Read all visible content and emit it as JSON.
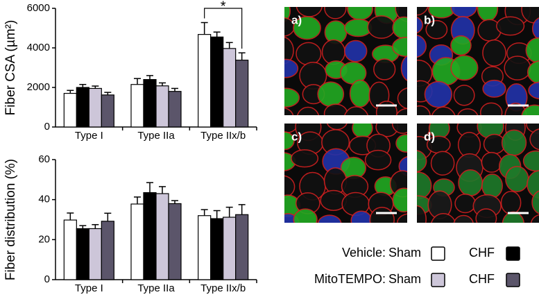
{
  "chart_data": [
    {
      "type": "bar",
      "ylabel": "Fiber CSA (µm²)",
      "categories": [
        "Type I",
        "Type IIa",
        "Type IIx/b"
      ],
      "series": [
        {
          "name": "Sham",
          "color": "#ffffff",
          "values": [
            1700,
            2150,
            4680
          ],
          "errors": [
            150,
            300,
            600
          ]
        },
        {
          "name": "CHF",
          "color": "#000000",
          "values": [
            2000,
            2400,
            4550
          ],
          "errors": [
            150,
            200,
            250
          ]
        },
        {
          "name": "Sham",
          "color": "#cdc6d9",
          "values": [
            1950,
            2080,
            3970
          ],
          "errors": [
            120,
            150,
            300
          ]
        },
        {
          "name": "CHF",
          "color": "#5b556a",
          "values": [
            1620,
            1800,
            3380
          ],
          "errors": [
            130,
            150,
            370
          ]
        }
      ],
      "ylim": [
        0,
        6000
      ],
      "yticks": [
        0,
        2000,
        4000,
        6000
      ],
      "annotation": {
        "text": "*"
      }
    },
    {
      "type": "bar",
      "ylabel": "Fiber distribution (%)",
      "categories": [
        "Type I",
        "Type IIa",
        "Type IIx/b"
      ],
      "series": [
        {
          "name": "Sham",
          "color": "#ffffff",
          "values": [
            29.8,
            37.8,
            32
          ],
          "errors": [
            3.5,
            3.5,
            3
          ]
        },
        {
          "name": "CHF",
          "color": "#000000",
          "values": [
            25.5,
            43.5,
            30.5
          ],
          "errors": [
            1.5,
            5,
            4
          ]
        },
        {
          "name": "Sham",
          "color": "#cdc6d9",
          "values": [
            25.5,
            43,
            31.2
          ],
          "errors": [
            2,
            3.5,
            5
          ]
        },
        {
          "name": "CHF",
          "color": "#5b556a",
          "values": [
            29.2,
            38,
            32.5
          ],
          "errors": [
            4,
            1.5,
            5
          ]
        }
      ],
      "ylim": [
        0,
        60
      ],
      "yticks": [
        0,
        20,
        40,
        60
      ]
    }
  ],
  "panels": [
    "a)",
    "b)",
    "c)",
    "d)"
  ],
  "legend": [
    {
      "label": "Vehicle:",
      "items": [
        {
          "name": "Sham",
          "color": "#ffffff"
        },
        {
          "name": "CHF",
          "color": "#000000"
        }
      ]
    },
    {
      "label": "MitoTEMPO:",
      "items": [
        {
          "name": "Sham",
          "color": "#cdc6d9"
        },
        {
          "name": "CHF",
          "color": "#5b556a"
        }
      ]
    }
  ]
}
